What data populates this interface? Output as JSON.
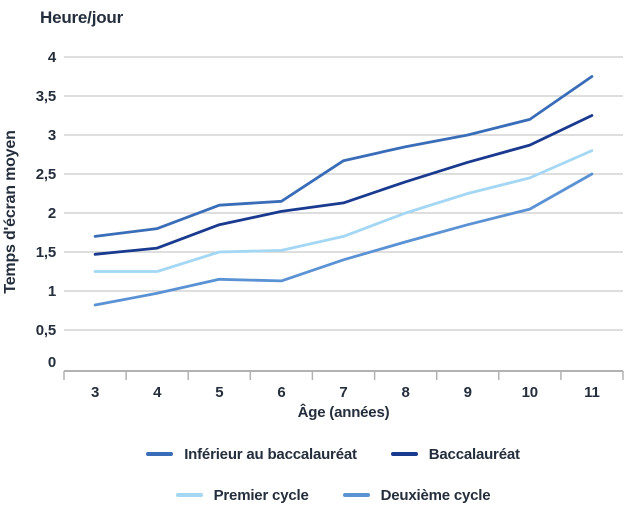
{
  "chart_data": {
    "type": "line",
    "unit_label": "Heure/jour",
    "ylabel": "Temps d'écran moyen",
    "xlabel": "Âge (années)",
    "x": [
      3,
      4,
      5,
      6,
      7,
      8,
      9,
      10,
      11
    ],
    "x_tick_labels": [
      "3",
      "4",
      "5",
      "6",
      "7",
      "8",
      "9",
      "10",
      "11"
    ],
    "y_ticks": [
      {
        "value": 0,
        "label": "0"
      },
      {
        "value": 0.5,
        "label": "0,5"
      },
      {
        "value": 1,
        "label": "1"
      },
      {
        "value": 1.5,
        "label": "1,5"
      },
      {
        "value": 2,
        "label": "2"
      },
      {
        "value": 2.5,
        "label": "2,5"
      },
      {
        "value": 3,
        "label": "3"
      },
      {
        "value": 3.5,
        "label": "3,5"
      },
      {
        "value": 4,
        "label": "4"
      }
    ],
    "ylim": [
      0,
      4
    ],
    "grid": "horizontal-only",
    "legend_position": "bottom",
    "series": [
      {
        "name": "Inférieur au baccalauréat",
        "color": "#3a6db8",
        "values": [
          1.7,
          1.8,
          2.1,
          2.15,
          2.67,
          2.85,
          3.0,
          3.2,
          3.75
        ]
      },
      {
        "name": "Baccalauréat",
        "color": "#1a3a8f",
        "values": [
          1.47,
          1.55,
          1.85,
          2.02,
          2.13,
          2.4,
          2.65,
          2.87,
          3.25
        ]
      },
      {
        "name": "Premier cycle",
        "color": "#a4d7f4",
        "values": [
          1.25,
          1.25,
          1.5,
          1.52,
          1.7,
          2.0,
          2.25,
          2.45,
          2.8
        ]
      },
      {
        "name": "Deuxième cycle",
        "color": "#5b92d4",
        "values": [
          0.82,
          0.97,
          1.15,
          1.13,
          1.4,
          1.63,
          1.85,
          2.05,
          2.5
        ]
      }
    ],
    "colors": {
      "text": "#242e3c",
      "gridline": "#c9c9c9",
      "axis": "#b2b2b2"
    }
  }
}
